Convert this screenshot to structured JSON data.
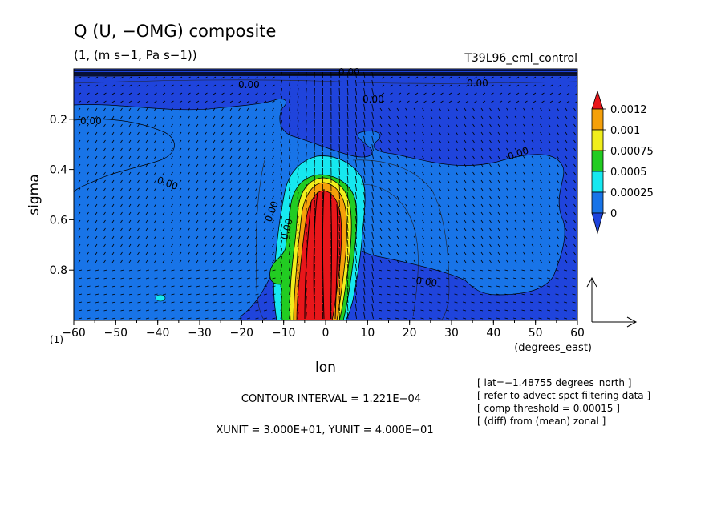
{
  "chart_data": {
    "type": "heatmap",
    "title": "Q (U, −OMG) composite",
    "units_line": "(1, (m s−1, Pa s−1))",
    "run_label": "T39L96_eml_control",
    "xlabel": "lon",
    "x_unit_label": "(degrees_east)",
    "ylabel": "sigma",
    "y_unit_label": "(1)",
    "xlim": [
      -60,
      60
    ],
    "ylim": [
      1.0,
      0.0
    ],
    "x_ticks": [
      -60,
      -50,
      -40,
      -30,
      -20,
      -10,
      0,
      10,
      20,
      30,
      40,
      50,
      60
    ],
    "x_tick_labels": [
      "−60",
      "−50",
      "−40",
      "−30",
      "−20",
      "−10",
      "0",
      "10",
      "20",
      "30",
      "40",
      "50",
      "60"
    ],
    "y_ticks": [
      0.2,
      0.4,
      0.6,
      0.8
    ],
    "y_tick_labels": [
      "0.2",
      "0.4",
      "0.6",
      "0.8"
    ],
    "colorbar": {
      "labels": [
        "0.0012",
        "0.001",
        "0.00075",
        "0.0005",
        "0.00025",
        "0"
      ],
      "colors": [
        "#e8161a",
        "#f5a00a",
        "#f0ee1c",
        "#22cc22",
        "#16e8f0",
        "#1874e8",
        "#1f44dc"
      ]
    },
    "contour_labels": [
      "0.00",
      "0.00",
      "0.00",
      "0.00",
      "0.00",
      "0.00",
      "0.00",
      "0.00",
      "0.00",
      "0.00"
    ],
    "contour_interval_text": "CONTOUR INTERVAL = 1.221E−04",
    "unit_text": "XUNIT = 3.000E+01, YUNIT = 4.000E−01",
    "notes": [
      "[ lat=−1.48755 degrees_north ]",
      "[ refer to advect spct filtering data ]",
      "[ comp threshold = 0.00015 ]",
      "[ (diff) from (mean) zonal ]"
    ],
    "grid": false
  }
}
